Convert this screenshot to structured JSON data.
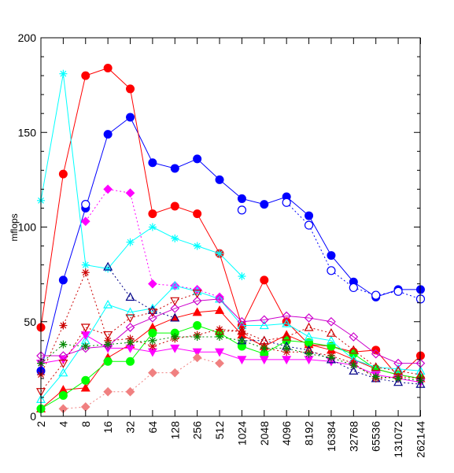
{
  "chart_data": {
    "type": "line",
    "title": "",
    "xlabel": "",
    "ylabel": "mflops",
    "ylim": [
      0,
      200
    ],
    "yticks": [
      "0",
      "50",
      "100",
      "150",
      "200"
    ],
    "x": [
      "2",
      "4",
      "8",
      "16",
      "32",
      "64",
      "128",
      "256",
      "512",
      "1024",
      "2048",
      "4096",
      "8192",
      "16384",
      "32768",
      "65536",
      "131072",
      "262144"
    ],
    "legend": "none",
    "grid": false,
    "series": [
      {
        "color": "#0000ff",
        "marker": "circle-filled",
        "dash": "",
        "values": [
          24,
          72,
          110,
          149,
          158,
          134,
          131,
          136,
          125,
          115,
          112,
          116,
          106,
          85,
          71,
          63,
          67,
          67
        ]
      },
      {
        "color": "#0000ff",
        "marker": "circle-open",
        "dash": "2,3",
        "values": [
          null,
          null,
          112,
          null,
          null,
          null,
          null,
          null,
          null,
          109,
          null,
          113,
          101,
          77,
          68,
          64,
          66,
          62
        ]
      },
      {
        "color": "#ff0000",
        "marker": "circle-filled",
        "dash": "",
        "values": [
          47,
          128,
          180,
          184,
          173,
          107,
          111,
          107,
          86,
          48,
          72,
          50,
          38,
          37,
          34,
          35,
          21,
          32
        ]
      },
      {
        "color": "#00ffff",
        "marker": "asterisk",
        "dash": "",
        "values": [
          114,
          181,
          80,
          78,
          92,
          100,
          94,
          90,
          86,
          74,
          null,
          null,
          null,
          null,
          null,
          null,
          null,
          null
        ]
      },
      {
        "color": "#ff00ff",
        "marker": "diamond-filled",
        "dash": "2,3",
        "values": [
          null,
          null,
          103,
          120,
          118,
          70,
          69,
          67,
          63,
          null,
          null,
          null,
          null,
          null,
          null,
          null,
          null,
          null
        ]
      },
      {
        "color": "#ff0000",
        "marker": "triangle-up-filled",
        "dash": "",
        "values": [
          4,
          14,
          15,
          31,
          38,
          47,
          52,
          55,
          56,
          43,
          37,
          43,
          38,
          35,
          30,
          25,
          22,
          20
        ]
      },
      {
        "color": "#00ff00",
        "marker": "circle-filled",
        "dash": "",
        "values": [
          4,
          11,
          19,
          29,
          29,
          44,
          44,
          48,
          44,
          37,
          33,
          40,
          39,
          37,
          33,
          25,
          22,
          20
        ]
      },
      {
        "color": "#00ffff",
        "marker": "triangle-up-open",
        "dash": "",
        "values": [
          9,
          23,
          40,
          59,
          55,
          57,
          69,
          66,
          62,
          48,
          48,
          49,
          42,
          40,
          30,
          26,
          25,
          24
        ]
      },
      {
        "color": "#ff00ff",
        "marker": "triangle-down-filled",
        "dash": "",
        "values": [
          28,
          30,
          43,
          36,
          36,
          34,
          36,
          34,
          34,
          30,
          30,
          30,
          30,
          29,
          27,
          22,
          20,
          18
        ]
      },
      {
        "color": "#cc00cc",
        "marker": "diamond-open",
        "dash": "",
        "values": [
          32,
          32,
          36,
          37,
          47,
          52,
          57,
          61,
          62,
          50,
          51,
          53,
          52,
          50,
          42,
          33,
          28,
          28
        ]
      },
      {
        "color": "#000088",
        "marker": "triangle-up-open",
        "dash": "2,3",
        "values": [
          null,
          null,
          null,
          79,
          63,
          56,
          52,
          null,
          null,
          40,
          40,
          37,
          35,
          30,
          24,
          20,
          18,
          17
        ]
      },
      {
        "color": "#cc0000",
        "marker": "triangle-down-open",
        "dash": "2,3",
        "values": [
          13,
          28,
          47,
          43,
          52,
          55,
          61,
          65,
          null,
          null,
          null,
          null,
          null,
          null,
          null,
          null,
          null,
          null
        ]
      },
      {
        "color": "#cc0000",
        "marker": "triangle-up-open",
        "dash": "2,3",
        "values": [
          null,
          null,
          null,
          null,
          null,
          null,
          null,
          null,
          45,
          45,
          40,
          42,
          47,
          44,
          35,
          26,
          24,
          22
        ]
      },
      {
        "color": "#cc0000",
        "marker": "asterisk",
        "dash": "2,3",
        "values": [
          22,
          48,
          76,
          40,
          41,
          37,
          41,
          43,
          46,
          45,
          36,
          34,
          34,
          32,
          28,
          20,
          21,
          20
        ]
      },
      {
        "color": "#008800",
        "marker": "asterisk",
        "dash": "2,3",
        "values": [
          28,
          38,
          37,
          38,
          39,
          40,
          42,
          42,
          42,
          40,
          36,
          36,
          33,
          31,
          27,
          21,
          20,
          19
        ]
      },
      {
        "color": "#f08080",
        "marker": "diamond-filled",
        "dash": "2,3",
        "values": [
          null,
          4,
          5,
          13,
          13,
          23,
          23,
          31,
          28,
          null,
          null,
          null,
          null,
          null,
          null,
          null,
          null,
          null
        ]
      }
    ]
  }
}
